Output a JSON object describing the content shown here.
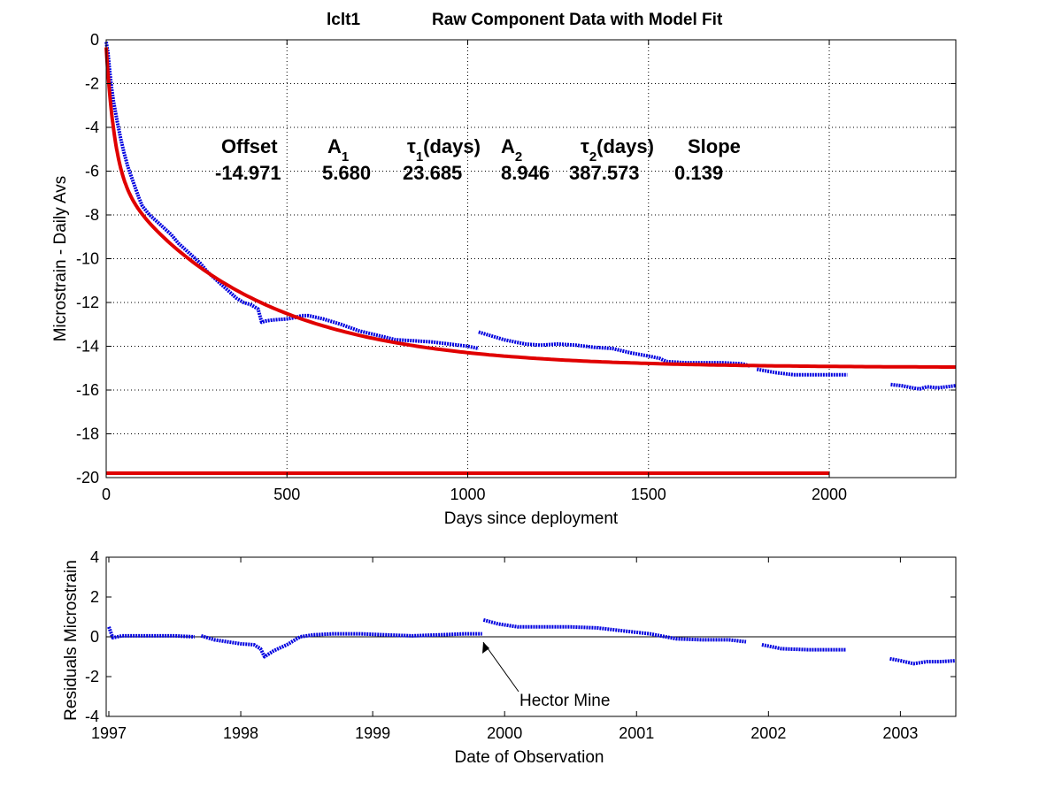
{
  "figure": {
    "title_station": "lclt1",
    "title_main": "Raw Component Data with Model Fit",
    "colors": {
      "data": "#0000e0",
      "fit": "#e00000",
      "axes": "#000000",
      "grid": "#000000"
    }
  },
  "params": {
    "headers": {
      "offset": "Offset",
      "a1_base": "A",
      "a1_sub": "1",
      "tau1_base": "τ",
      "tau1_sub": "1",
      "tau1_suffix": "(days)",
      "a2_base": "A",
      "a2_sub": "2",
      "tau2_base": "τ",
      "tau2_sub": "2",
      "tau2_suffix": "(days)",
      "slope": "Slope"
    },
    "values": {
      "offset": "-14.971",
      "a1": "5.680",
      "tau1": "23.685",
      "a2": "8.946",
      "tau2": "387.573",
      "slope": "0.139"
    }
  },
  "chart_data": [
    {
      "type": "line",
      "xlabel": "Days since deployment",
      "ylabel": "Microstrain - Daily Avs",
      "xlim": [
        0,
        2350
      ],
      "ylim": [
        -20,
        0
      ],
      "xticks": [
        0,
        500,
        1000,
        1500,
        2000
      ],
      "yticks": [
        0,
        -2,
        -4,
        -6,
        -8,
        -10,
        -12,
        -14,
        -16,
        -18,
        -20
      ],
      "grid": true,
      "series": [
        {
          "role": "data",
          "color": "#0000e0",
          "segments": [
            [
              [
                0,
                -0.1
              ],
              [
                5,
                -0.6
              ],
              [
                10,
                -1.5
              ],
              [
                15,
                -2.2
              ],
              [
                20,
                -2.8
              ],
              [
                30,
                -3.7
              ],
              [
                40,
                -4.5
              ],
              [
                50,
                -5.2
              ],
              [
                60,
                -5.8
              ],
              [
                75,
                -6.5
              ],
              [
                90,
                -7.2
              ],
              [
                100,
                -7.6
              ],
              [
                120,
                -8.0
              ],
              [
                140,
                -8.3
              ],
              [
                160,
                -8.6
              ],
              [
                180,
                -8.9
              ],
              [
                200,
                -9.3
              ],
              [
                220,
                -9.6
              ],
              [
                240,
                -9.9
              ],
              [
                260,
                -10.2
              ],
              [
                280,
                -10.6
              ],
              [
                300,
                -10.9
              ],
              [
                320,
                -11.2
              ],
              [
                340,
                -11.5
              ],
              [
                360,
                -11.8
              ],
              [
                380,
                -12.0
              ],
              [
                400,
                -12.1
              ],
              [
                420,
                -12.3
              ],
              [
                430,
                -12.9
              ],
              [
                440,
                -12.85
              ],
              [
                460,
                -12.8
              ],
              [
                500,
                -12.75
              ],
              [
                520,
                -12.7
              ],
              [
                540,
                -12.6
              ],
              [
                560,
                -12.6
              ],
              [
                600,
                -12.75
              ],
              [
                650,
                -13.0
              ],
              [
                700,
                -13.3
              ],
              [
                750,
                -13.5
              ],
              [
                800,
                -13.7
              ],
              [
                850,
                -13.75
              ],
              [
                900,
                -13.8
              ],
              [
                950,
                -13.9
              ],
              [
                1000,
                -14.0
              ],
              [
                1030,
                -14.1
              ]
            ],
            [
              [
                1030,
                -13.35
              ],
              [
                1050,
                -13.45
              ],
              [
                1080,
                -13.6
              ],
              [
                1100,
                -13.7
              ],
              [
                1130,
                -13.8
              ],
              [
                1160,
                -13.9
              ],
              [
                1200,
                -13.95
              ],
              [
                1250,
                -13.9
              ],
              [
                1300,
                -13.95
              ],
              [
                1350,
                -14.05
              ],
              [
                1400,
                -14.1
              ],
              [
                1450,
                -14.3
              ],
              [
                1500,
                -14.45
              ],
              [
                1530,
                -14.55
              ],
              [
                1550,
                -14.7
              ],
              [
                1600,
                -14.75
              ],
              [
                1700,
                -14.75
              ],
              [
                1760,
                -14.8
              ],
              [
                1780,
                -14.9
              ]
            ],
            [
              [
                1800,
                -15.05
              ],
              [
                1850,
                -15.2
              ],
              [
                1900,
                -15.3
              ],
              [
                2000,
                -15.3
              ],
              [
                2050,
                -15.3
              ]
            ],
            [
              [
                2170,
                -15.75
              ],
              [
                2200,
                -15.8
              ],
              [
                2230,
                -15.9
              ],
              [
                2250,
                -15.95
              ],
              [
                2270,
                -15.85
              ],
              [
                2300,
                -15.9
              ],
              [
                2350,
                -15.8
              ]
            ]
          ]
        },
        {
          "role": "model-fit",
          "color": "#e00000",
          "formula": "offset + A1*exp(-t/tau1) + A2*exp(-t/tau2)",
          "x_range": [
            0,
            2350
          ]
        },
        {
          "role": "baseline",
          "color": "#e00000",
          "points": [
            [
              0,
              -19.8
            ],
            [
              2000,
              -19.8
            ]
          ]
        }
      ]
    },
    {
      "type": "line",
      "xlabel": "Date of Observation",
      "ylabel": "Residuals Microstrain",
      "xlim": [
        1996.98,
        2003.42
      ],
      "ylim": [
        -4,
        4
      ],
      "xticks": [
        1997,
        1998,
        1999,
        2000,
        2001,
        2002,
        2003
      ],
      "xtick_labels": [
        "1997",
        "1998",
        "1999",
        "2000",
        "2001",
        "2002",
        "2003"
      ],
      "yticks": [
        4,
        2,
        0,
        -2,
        -4
      ],
      "zero_line": true,
      "series": [
        {
          "role": "residuals",
          "color": "#0000e0",
          "segments": [
            [
              [
                1997.0,
                0.5
              ],
              [
                1997.03,
                -0.05
              ],
              [
                1997.1,
                0.05
              ],
              [
                1997.3,
                0.05
              ],
              [
                1997.5,
                0.05
              ],
              [
                1997.65,
                0.0
              ]
            ],
            [
              [
                1997.7,
                0.05
              ],
              [
                1997.8,
                -0.15
              ],
              [
                1998.0,
                -0.35
              ],
              [
                1998.1,
                -0.4
              ],
              [
                1998.15,
                -0.6
              ],
              [
                1998.18,
                -1.0
              ],
              [
                1998.25,
                -0.7
              ],
              [
                1998.35,
                -0.4
              ],
              [
                1998.45,
                0.0
              ],
              [
                1998.55,
                0.1
              ],
              [
                1998.7,
                0.15
              ],
              [
                1998.9,
                0.15
              ],
              [
                1999.1,
                0.1
              ],
              [
                1999.3,
                0.05
              ],
              [
                1999.5,
                0.1
              ],
              [
                1999.7,
                0.15
              ],
              [
                1999.83,
                0.15
              ]
            ],
            [
              [
                1999.84,
                0.85
              ],
              [
                1999.95,
                0.65
              ],
              [
                2000.1,
                0.5
              ],
              [
                2000.3,
                0.5
              ],
              [
                2000.5,
                0.5
              ],
              [
                2000.7,
                0.45
              ],
              [
                2000.9,
                0.3
              ],
              [
                2001.1,
                0.15
              ],
              [
                2001.3,
                -0.1
              ],
              [
                2001.5,
                -0.15
              ],
              [
                2001.7,
                -0.15
              ],
              [
                2001.83,
                -0.25
              ]
            ],
            [
              [
                2001.95,
                -0.4
              ],
              [
                2002.1,
                -0.6
              ],
              [
                2002.3,
                -0.65
              ],
              [
                2002.59,
                -0.65
              ]
            ],
            [
              [
                2002.92,
                -1.1
              ],
              [
                2003.0,
                -1.2
              ],
              [
                2003.1,
                -1.35
              ],
              [
                2003.2,
                -1.25
              ],
              [
                2003.3,
                -1.25
              ],
              [
                2003.42,
                -1.2
              ]
            ]
          ]
        }
      ],
      "annotations": [
        {
          "text": "Hector Mine",
          "arrow_to": [
            1999.84,
            0.0
          ]
        }
      ]
    }
  ]
}
